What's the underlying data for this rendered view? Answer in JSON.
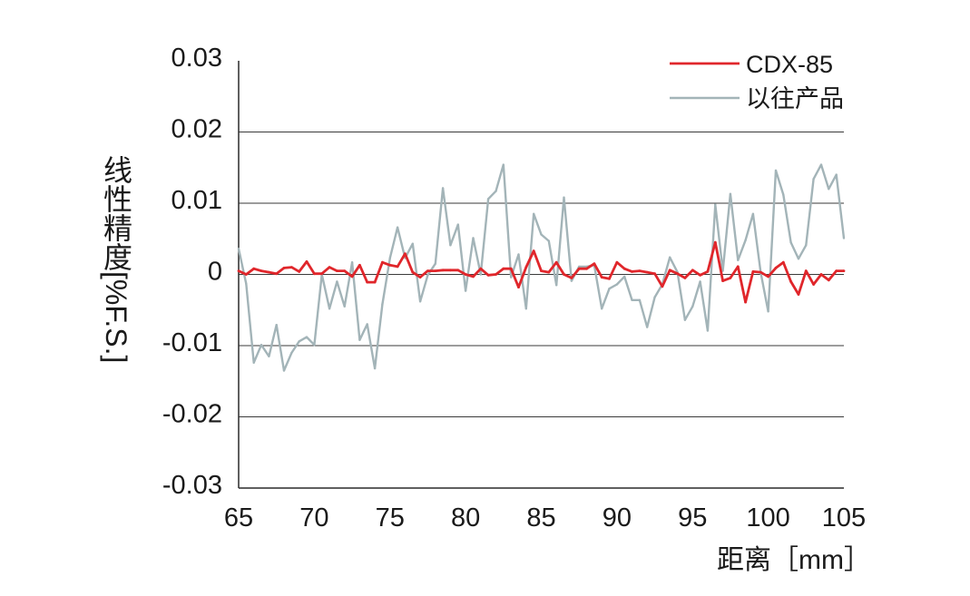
{
  "chart_data": {
    "type": "line",
    "xlabel": "距离［mm］",
    "ylabel": "线性精度[%F.S.]",
    "xlim": [
      65,
      105
    ],
    "ylim": [
      -0.03,
      0.03
    ],
    "xticks": [
      65,
      70,
      75,
      80,
      85,
      90,
      95,
      100,
      105
    ],
    "yticks": [
      0.03,
      0.02,
      0.01,
      0,
      -0.01,
      -0.02,
      -0.03
    ],
    "grid": "horizontal",
    "legend": "top-right",
    "x": [
      65,
      65.5,
      66,
      66.5,
      67,
      67.5,
      68,
      68.5,
      69,
      69.5,
      70,
      70.5,
      71,
      71.5,
      72,
      72.5,
      73,
      73.5,
      74,
      74.5,
      75,
      75.5,
      76,
      76.5,
      77,
      77.5,
      78,
      78.5,
      79,
      79.5,
      80,
      80.5,
      81,
      81.5,
      82,
      82.5,
      83,
      83.5,
      84,
      84.5,
      85,
      85.5,
      86,
      86.5,
      87,
      87.5,
      88,
      88.5,
      89,
      89.5,
      90,
      90.5,
      91,
      91.5,
      92,
      92.5,
      93,
      93.5,
      94,
      94.5,
      95,
      95.5,
      96,
      96.5,
      97,
      97.5,
      98,
      98.5,
      99,
      99.5,
      100,
      100.5,
      101,
      101.5,
      102,
      102.5,
      103,
      103.5,
      104,
      104.5,
      105
    ],
    "series": [
      {
        "name": "CDX-85",
        "color": "#e0262b",
        "values": [
          0.0005,
          0,
          0.0008,
          0.0005,
          0.0003,
          0.0001,
          0.0009,
          0.001,
          0.0004,
          0.0018,
          0.0001,
          0.0001,
          0.001,
          0.0005,
          0.0005,
          -0.0003,
          0.0013,
          -0.0011,
          -0.0011,
          0.0017,
          0.0013,
          0.0011,
          0.0029,
          0.0003,
          -0.0004,
          0.0005,
          0.0005,
          0.0006,
          0.0006,
          0.0006,
          0,
          -0.0003,
          0.0008,
          -0.0001,
          0,
          0.0008,
          0.0008,
          -0.0018,
          0.001,
          0.0033,
          0.0005,
          0.0003,
          0.0017,
          0,
          -0.0005,
          0.0008,
          0.0008,
          0.0015,
          -0.0004,
          -0.0006,
          0.0017,
          0.0008,
          0.0004,
          0.0005,
          0.0003,
          0.0001,
          -0.0017,
          0.0006,
          0.0001,
          -0.0005,
          0.0006,
          -0.0001,
          0.0004,
          0.0045,
          -0.0009,
          -0.0005,
          0.0011,
          -0.0039,
          0.0004,
          0.0003,
          -0.0003,
          0.0009,
          0.0017,
          -0.001,
          -0.0028,
          0.0005,
          -0.0014,
          0,
          -0.0008,
          0.0005,
          0.0005
        ]
      },
      {
        "name": "以往产品",
        "color": "#a3b4b8",
        "values": [
          0.0036,
          -0.0013,
          -0.0124,
          -0.0099,
          -0.0115,
          -0.0071,
          -0.0135,
          -0.011,
          -0.0094,
          -0.0088,
          -0.0099,
          0,
          -0.0048,
          -0.001,
          -0.0045,
          0.0017,
          -0.0092,
          -0.007,
          -0.0132,
          -0.0042,
          0.0023,
          0.0066,
          0.0023,
          0.0043,
          -0.0038,
          -0.0001,
          0.0015,
          0.0121,
          0.0041,
          0.007,
          -0.0023,
          0.0051,
          0,
          0.0106,
          0.0117,
          0.0154,
          -0.0004,
          0.0028,
          -0.0048,
          0.0085,
          0.0056,
          0.0047,
          -0.0015,
          0.0108,
          -0.0009,
          0.0011,
          0.0011,
          0.0013,
          -0.0048,
          -0.002,
          -0.0014,
          -0.0003,
          -0.0036,
          -0.0036,
          -0.0074,
          -0.0032,
          -0.0014,
          0.0024,
          0.0003,
          -0.0064,
          -0.0045,
          -0.001,
          -0.0079,
          0.0098,
          0.0005,
          0.0113,
          0.002,
          0.0048,
          0.0085,
          0.0003,
          -0.0052,
          0.0146,
          0.0112,
          0.0045,
          0.0022,
          0.0041,
          0.0134,
          0.0154,
          0.012,
          0.014,
          0.0051
        ]
      }
    ]
  }
}
